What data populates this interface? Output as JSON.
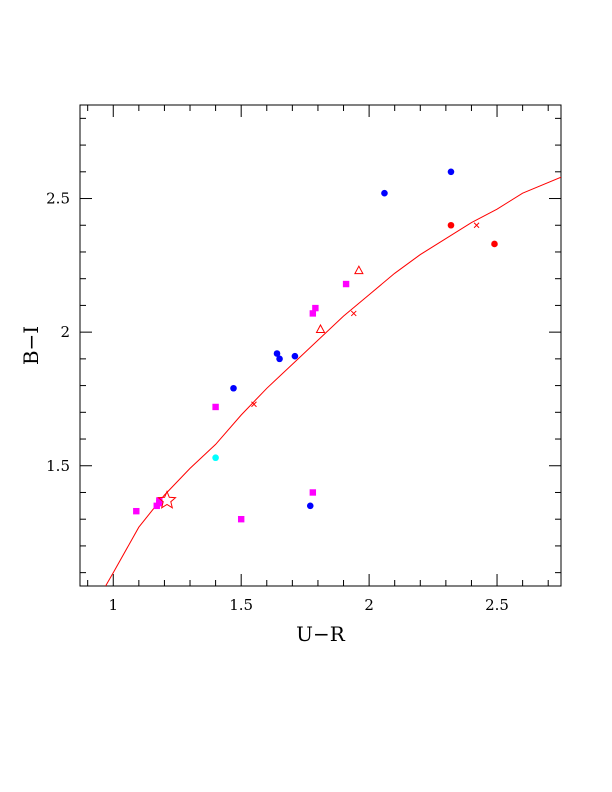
{
  "chart_data": {
    "type": "scatter",
    "title": "",
    "xlabel": "U−R",
    "ylabel": "B−I",
    "xlim": [
      0.87,
      2.75
    ],
    "ylim": [
      1.05,
      2.85
    ],
    "x_ticks": [
      {
        "value": 1,
        "label": "1"
      },
      {
        "value": 1.5,
        "label": "1.5"
      },
      {
        "value": 2,
        "label": "2"
      },
      {
        "value": 2.5,
        "label": "2.5"
      }
    ],
    "y_ticks": [
      {
        "value": 1.5,
        "label": "1.5"
      },
      {
        "value": 2,
        "label": "2"
      },
      {
        "value": 2.5,
        "label": "2.5"
      }
    ],
    "x_minor_step": 0.1,
    "y_minor_step": 0.1,
    "grid": false,
    "series": [
      {
        "marker": "circle",
        "color": "#0000ff",
        "points": [
          [
            1.47,
            1.79
          ],
          [
            1.64,
            1.92
          ],
          [
            1.65,
            1.9
          ],
          [
            1.71,
            1.91
          ],
          [
            2.06,
            2.52
          ],
          [
            2.32,
            2.6
          ],
          [
            1.77,
            1.35
          ]
        ]
      },
      {
        "marker": "square",
        "color": "#ff00ff",
        "points": [
          [
            1.09,
            1.33
          ],
          [
            1.17,
            1.35
          ],
          [
            1.18,
            1.36
          ],
          [
            1.18,
            1.37
          ],
          [
            1.4,
            1.72
          ],
          [
            1.5,
            1.3
          ],
          [
            1.78,
            1.4
          ],
          [
            1.78,
            2.07
          ],
          [
            1.79,
            2.09
          ],
          [
            1.91,
            2.18
          ]
        ]
      },
      {
        "marker": "circle",
        "color": "#00ffff",
        "points": [
          [
            1.4,
            1.53
          ]
        ]
      },
      {
        "marker": "circle",
        "color": "#ff0000",
        "points": [
          [
            2.32,
            2.4
          ],
          [
            2.49,
            2.33
          ]
        ]
      },
      {
        "marker": "triangle",
        "color": "#ff0000",
        "points": [
          [
            1.81,
            2.01
          ],
          [
            1.96,
            2.23
          ]
        ]
      },
      {
        "marker": "star",
        "color": "#ff0000",
        "points": [
          [
            1.21,
            1.37
          ]
        ]
      }
    ],
    "curve": {
      "color": "#ff0000",
      "points": [
        [
          0.97,
          1.05
        ],
        [
          1.0,
          1.1
        ],
        [
          1.1,
          1.27
        ],
        [
          1.2,
          1.39
        ],
        [
          1.3,
          1.49
        ],
        [
          1.4,
          1.58
        ],
        [
          1.5,
          1.69
        ],
        [
          1.6,
          1.79
        ],
        [
          1.7,
          1.88
        ],
        [
          1.8,
          1.97
        ],
        [
          1.9,
          2.06
        ],
        [
          2.0,
          2.14
        ],
        [
          2.1,
          2.22
        ],
        [
          2.2,
          2.29
        ],
        [
          2.3,
          2.35
        ],
        [
          2.4,
          2.41
        ],
        [
          2.5,
          2.46
        ],
        [
          2.6,
          2.52
        ],
        [
          2.75,
          2.58
        ]
      ],
      "cross_marks": [
        [
          1.55,
          1.73
        ],
        [
          1.94,
          2.07
        ],
        [
          2.42,
          2.4
        ]
      ]
    }
  }
}
